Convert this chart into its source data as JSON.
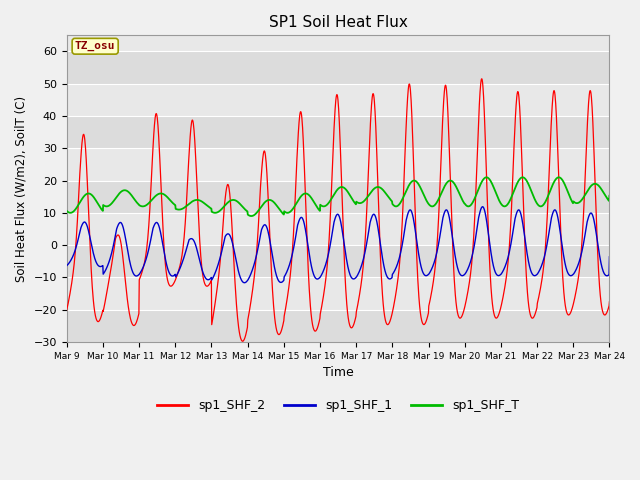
{
  "title": "SP1 Soil Heat Flux",
  "xlabel": "Time",
  "ylabel": "Soil Heat Flux (W/m2), SoilT (C)",
  "ylim": [
    -30,
    65
  ],
  "yticks": [
    -30,
    -20,
    -10,
    0,
    10,
    20,
    30,
    40,
    50,
    60
  ],
  "colors": {
    "shf2": "#ff0000",
    "shf1": "#0000cc",
    "shft": "#00bb00"
  },
  "legend_labels": [
    "sp1_SHF_2",
    "sp1_SHF_1",
    "sp1_SHF_T"
  ],
  "tz_label": "TZ_osu",
  "bg_color": "#e8e8e8",
  "band_color": "#d4d4d4",
  "xtick_labels": [
    "Mar 9",
    "Mar 10",
    "Mar 11",
    "Mar 12",
    "Mar 13",
    "Mar 14",
    "Mar 15",
    "Mar 16",
    "Mar 17",
    "Mar 18",
    "Mar 19",
    "Mar 20",
    "Mar 21",
    "Mar 22",
    "Mar 23",
    "Mar 24"
  ]
}
